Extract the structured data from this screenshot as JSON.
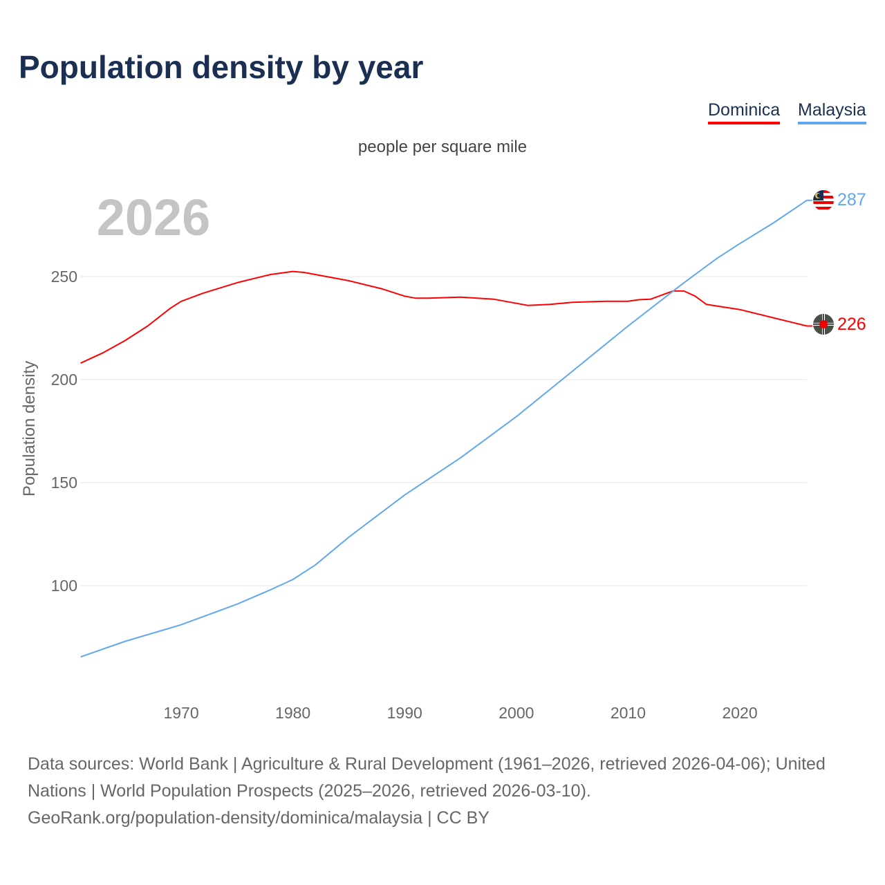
{
  "title": "Population density by year",
  "legend": [
    {
      "label": "Dominica",
      "color": "#ff0000"
    },
    {
      "label": "Malaysia",
      "color": "#5fa8f0"
    }
  ],
  "chart_data": {
    "type": "line",
    "title": "Population density by year",
    "subtitle": "people per square mile",
    "ylabel": "Population density",
    "xlabel": "",
    "year_label": "2026",
    "xlim": [
      1961,
      2026
    ],
    "ylim": [
      45,
      300
    ],
    "x_ticks": [
      1970,
      1980,
      1990,
      2000,
      2010,
      2020
    ],
    "y_ticks": [
      100,
      150,
      200,
      250
    ],
    "grid": true,
    "legend_position": "top-right",
    "series": [
      {
        "name": "Dominica",
        "color": "#ff0000",
        "end_label": "226",
        "x": [
          1961,
          1963,
          1965,
          1967,
          1969,
          1970,
          1972,
          1975,
          1978,
          1980,
          1981,
          1983,
          1985,
          1988,
          1990,
          1991,
          1992,
          1995,
          1998,
          2000,
          2001,
          2003,
          2005,
          2008,
          2010,
          2011,
          2012,
          2014,
          2015,
          2016,
          2017,
          2020,
          2023,
          2026
        ],
        "y": [
          208,
          213,
          219,
          226,
          234.5,
          238,
          242,
          247,
          251,
          252.5,
          252,
          250,
          248,
          244,
          240.5,
          239.5,
          239.5,
          240,
          239,
          237,
          236,
          236.5,
          237.5,
          238,
          238,
          238.8,
          239,
          243,
          243,
          240.5,
          236.5,
          234,
          230,
          226
        ]
      },
      {
        "name": "Malaysia",
        "color": "#5fa8f0",
        "end_label": "287",
        "x": [
          1961,
          1965,
          1970,
          1975,
          1978,
          1980,
          1982,
          1985,
          1990,
          1995,
          2000,
          2005,
          2010,
          2015,
          2018,
          2020,
          2023,
          2026
        ],
        "y": [
          65.4,
          73,
          81,
          91,
          98,
          103,
          110,
          123.5,
          144,
          162,
          182,
          204,
          226,
          247,
          259,
          266,
          276,
          287
        ]
      }
    ]
  },
  "sources": {
    "line1": "Data sources: World Bank | Agriculture & Rural Development (1961–2026, retrieved 2026-04-06); United Nations | World Population Prospects (2025–2026, retrieved 2026-03-10).",
    "line2": "GeoRank.org/population-density/dominica/malaysia | CC BY"
  }
}
